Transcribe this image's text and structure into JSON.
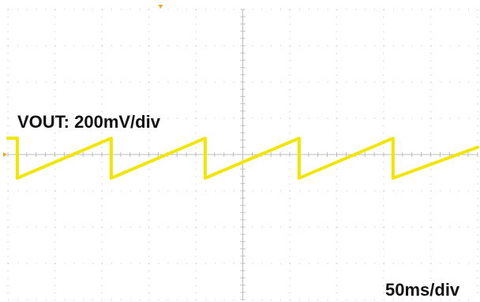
{
  "chart_data": {
    "type": "line",
    "title": "",
    "annotations": {
      "channel_scale": "VOUT: 200mV/div",
      "time_scale": "50ms/div"
    },
    "grid": true,
    "divisions": {
      "x": 10,
      "y": 8
    },
    "x_unit": "div",
    "y_unit": "div",
    "xlim": [
      0,
      10
    ],
    "ylim": [
      -4,
      4
    ],
    "series": [
      {
        "trace_color": "#f2e600",
        "x": [
          0.0,
          0.2,
          0.2,
          2.2,
          2.2,
          4.2,
          4.2,
          6.2,
          6.2,
          8.2,
          8.2,
          10.0
        ],
        "y": [
          0.45,
          0.45,
          -0.65,
          0.45,
          -0.65,
          0.45,
          -0.65,
          0.45,
          -0.65,
          0.45,
          -0.65,
          0.2
        ]
      }
    ],
    "trigger_marker": {
      "x": 3.25,
      "color": "#f5a623"
    },
    "ground_marker": {
      "y": 0,
      "color": "#f5a623"
    }
  }
}
